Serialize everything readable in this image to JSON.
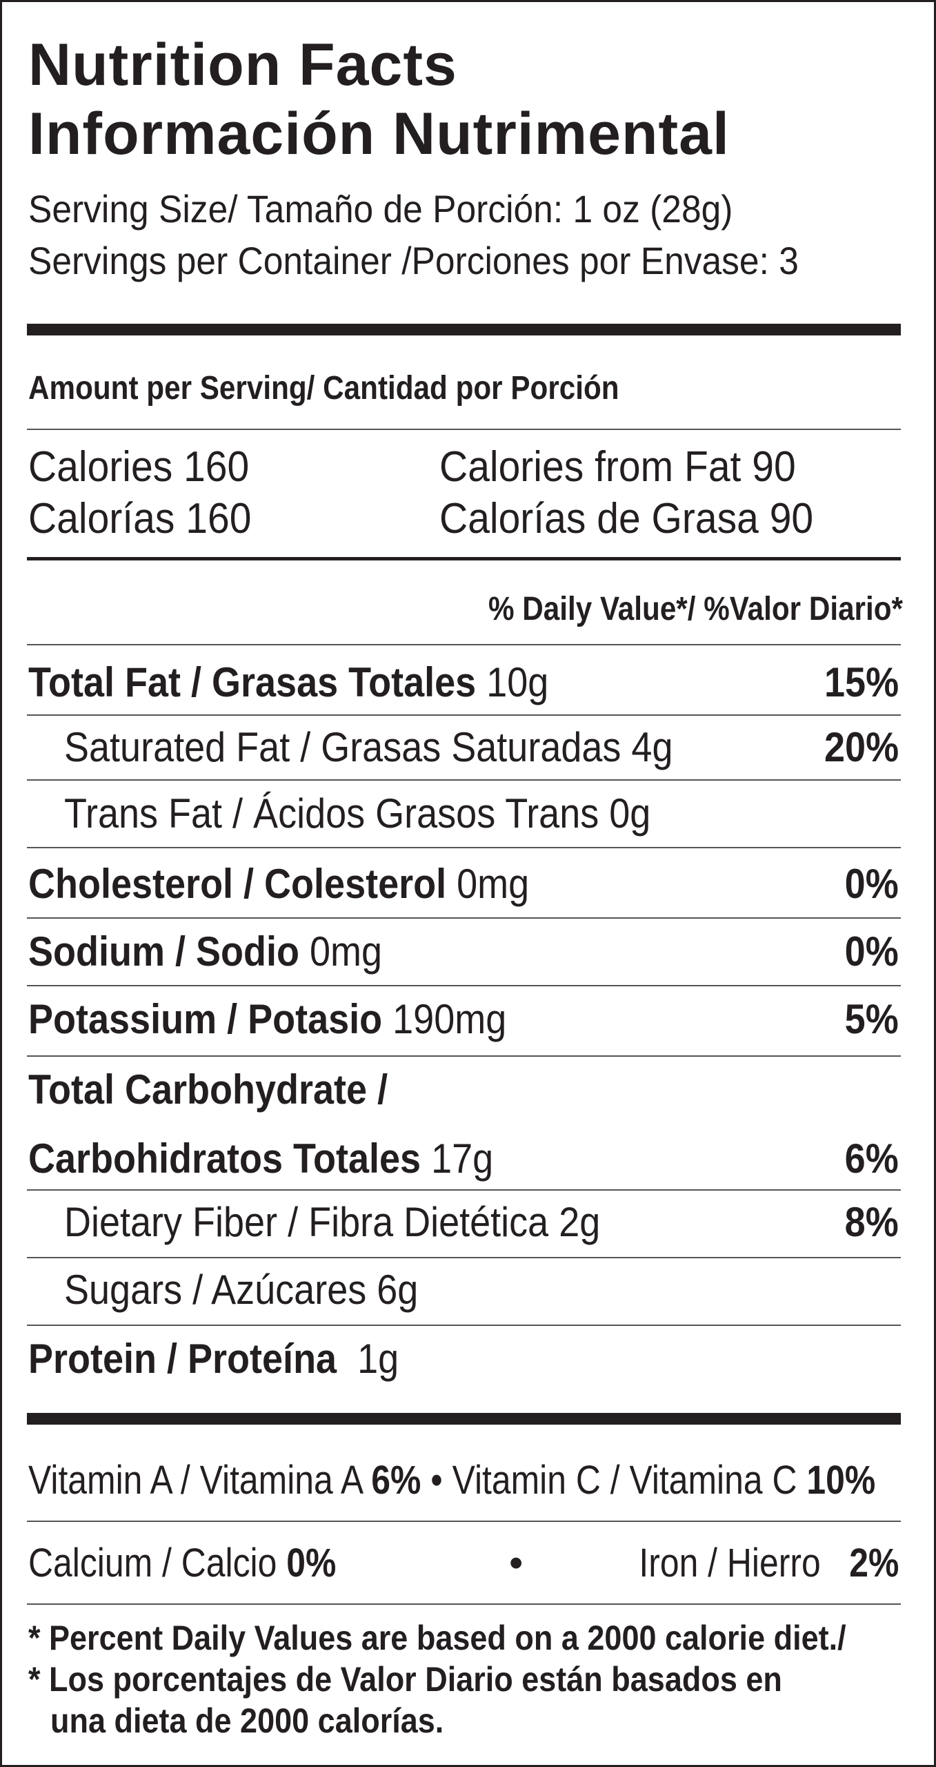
{
  "title_en": "Nutrition Facts",
  "title_es": "Información Nutrimental",
  "serving_size": "Serving Size/ Tamaño de Porción: 1 oz (28g)",
  "servings_per_container": "Servings per Container /Porciones por Envase: 3",
  "amount_per_serving": "Amount per Serving/ Cantidad por Porción",
  "calories": {
    "en": "Calories 160",
    "es": "Calorías 160",
    "fat_en": "Calories from Fat 90",
    "fat_es": "Calorías de Grasa 90"
  },
  "daily_value_header": "% Daily Value*/ %Valor Diario*",
  "nutrients": [
    {
      "name": "Total Fat / Grasas Totales",
      "amount": "10g",
      "dv": "15%"
    },
    {
      "name": "Saturated Fat / Grasas Saturadas 4g",
      "amount": "",
      "dv": "20%"
    },
    {
      "name": "Trans Fat / Ácidos Grasos Trans  0g",
      "amount": "",
      "dv": ""
    },
    {
      "name": "Cholesterol / Colesterol",
      "amount": "0mg",
      "dv": "0%"
    },
    {
      "name": "Sodium / Sodio",
      "amount": "0mg",
      "dv": "0%"
    },
    {
      "name": "Potassium / Potasio",
      "amount": "190mg",
      "dv": "5%"
    },
    {
      "name": "Total Carbohydrate /",
      "amount": "",
      "dv": ""
    },
    {
      "name": "Carbohidratos Totales",
      "amount": "17g",
      "dv": "6%"
    },
    {
      "name": "Dietary Fiber / Fibra Dietética 2g",
      "amount": "",
      "dv": "8%"
    },
    {
      "name": "Sugars / Azúcares 6g",
      "amount": "",
      "dv": ""
    },
    {
      "name": "Protein / Proteína",
      "amount": "1g",
      "dv": ""
    }
  ],
  "vitamins": {
    "vit_a": "Vitamin A / Vitamina A",
    "vit_a_dv": "6%",
    "bullet": "•",
    "vit_c": "Vitamin C / Vitamina C",
    "vit_c_dv": "10%",
    "calcium": "Calcium / Calcio",
    "calcium_dv": "0%",
    "iron": "Iron / Hierro",
    "iron_dv": "2%"
  },
  "footnote": [
    "* Percent Daily Values are based on a 2000 calorie diet./",
    "* Los porcentajes de Valor Diario están basados en",
    "una dieta de 2000 calorías."
  ]
}
